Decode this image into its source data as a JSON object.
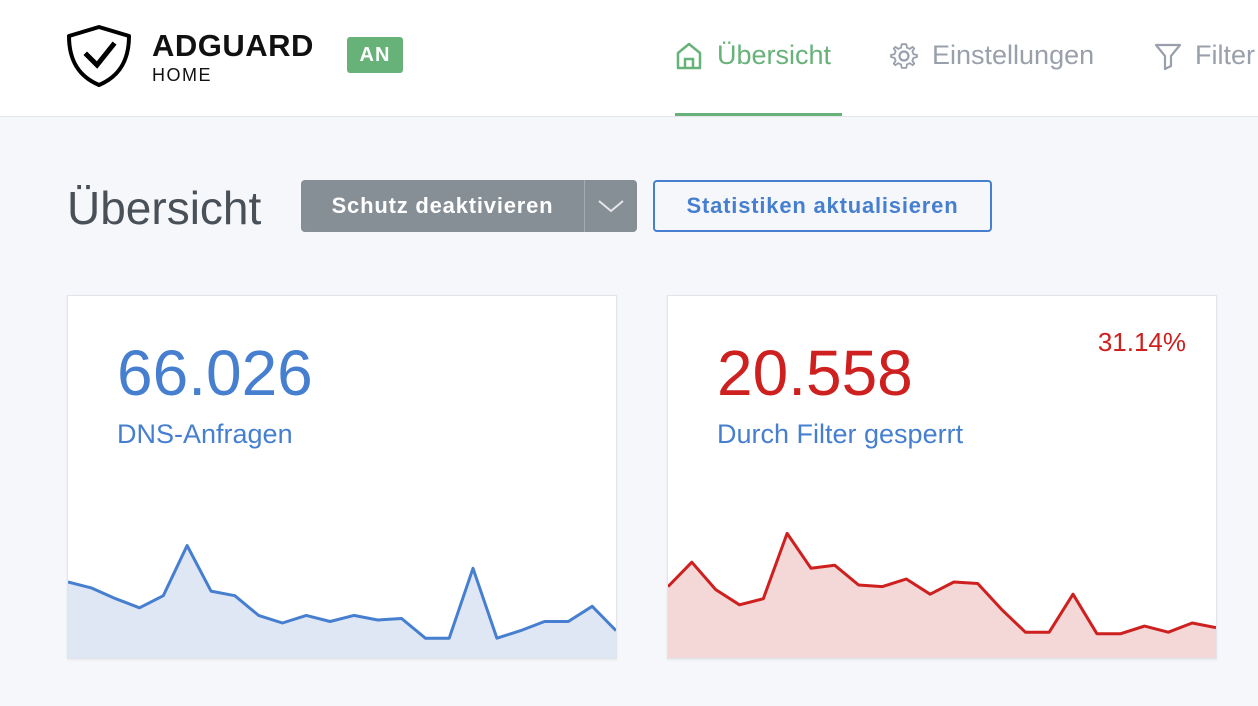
{
  "app": {
    "brand_name": "ADGUARD",
    "brand_sub": "HOME",
    "status": "AN"
  },
  "colors": {
    "accent_green": "#67b279",
    "blue": "#467fcf",
    "red": "#cd201f",
    "gray_button": "#868e96"
  },
  "nav": {
    "items": [
      {
        "label": "Übersicht",
        "icon": "home-icon",
        "active": true
      },
      {
        "label": "Einstellungen",
        "icon": "gear-icon",
        "active": false
      },
      {
        "label": "Filter",
        "icon": "filter-icon",
        "active": false
      }
    ]
  },
  "page": {
    "title": "Übersicht",
    "disable_protection": "Schutz deaktivieren",
    "refresh_stats": "Statistiken aktualisieren"
  },
  "cards": {
    "dns": {
      "value": "66.026",
      "label": "DNS-Anfragen",
      "series": [
        50,
        46,
        39,
        33,
        41,
        74,
        44,
        41,
        28,
        23,
        28,
        24,
        28,
        25,
        26,
        13,
        13,
        59,
        13,
        18,
        24,
        24,
        34,
        18
      ]
    },
    "blocked": {
      "value": "20.558",
      "label": "Durch Filter gesperrt",
      "percent": "31.14%",
      "series": [
        47,
        63,
        45,
        35,
        39,
        82,
        59,
        61,
        48,
        47,
        52,
        42,
        50,
        49,
        32,
        17,
        17,
        42,
        16,
        16,
        21,
        17,
        23,
        20
      ]
    }
  }
}
